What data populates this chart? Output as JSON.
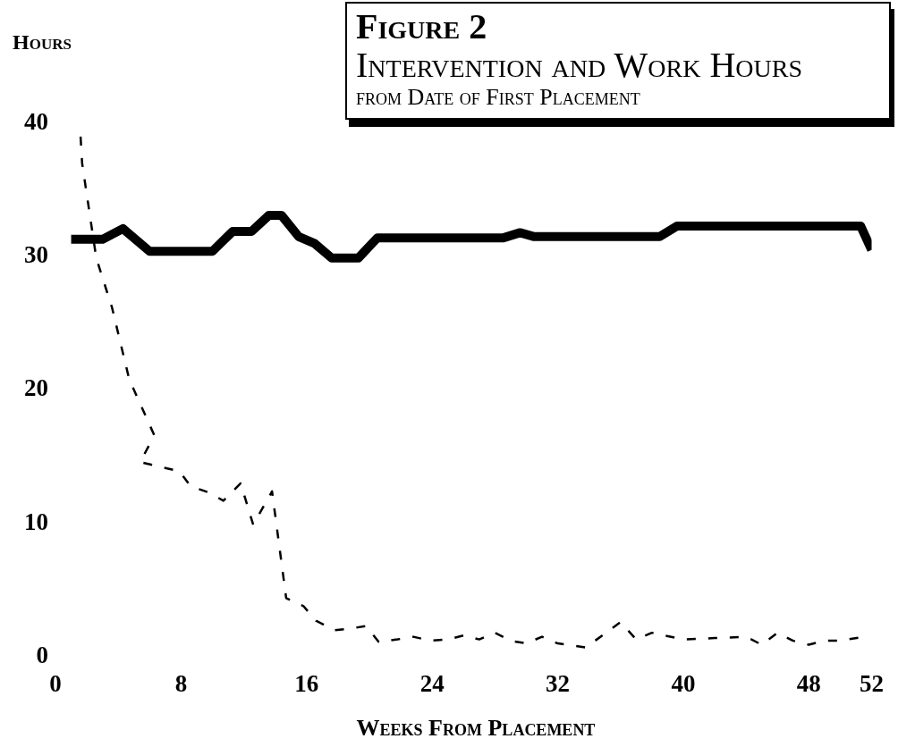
{
  "chart_data": {
    "type": "line",
    "title": "Figure 2",
    "subtitle": "Intervention and Work Hours",
    "annotations": [
      "from Date of First Placement"
    ],
    "xlabel": "Weeks From Placement",
    "ylabel": "Hours",
    "xlim": [
      0,
      52
    ],
    "xticks": [
      0,
      8,
      16,
      24,
      32,
      40,
      48,
      52
    ],
    "ylim": [
      0,
      40
    ],
    "yticks": [
      0,
      10,
      20,
      30,
      40
    ],
    "grid": false,
    "legend": false,
    "marker": "none",
    "series": [
      {
        "line_style": "solid",
        "color": "#000000",
        "x": [
          1,
          3,
          4.3,
          6,
          10,
          11.3,
          12.5,
          13.6,
          14.4,
          15.5,
          16.5,
          17.6,
          19.3,
          20.5,
          28.5,
          29.6,
          30.5,
          38.5,
          39.6,
          51.3,
          52
        ],
        "values": [
          31.3,
          31.3,
          32.1,
          30.4,
          30.4,
          31.9,
          31.9,
          33.1,
          33.1,
          31.5,
          31,
          29.9,
          29.9,
          31.4,
          31.4,
          31.8,
          31.5,
          31.5,
          32.3,
          32.3,
          30.5
        ]
      },
      {
        "line_style": "dashed",
        "color": "#000000",
        "x": [
          1.6,
          1.7,
          2.6,
          3.6,
          4.7,
          6.3,
          5.4,
          7.9,
          8.6,
          9.8,
          10.7,
          11.8,
          12.6,
          13.8,
          14.7,
          15.8,
          16.6,
          17.8,
          18.7,
          19.8,
          20.6,
          21.8,
          22.8,
          23.9,
          25,
          26,
          27,
          28,
          29,
          30,
          31,
          32,
          33.8,
          36,
          37,
          38,
          40,
          42,
          44,
          45,
          46,
          47,
          48,
          49,
          50,
          51.5
        ],
        "values": [
          39,
          37,
          29.9,
          26.2,
          20.8,
          16.6,
          14.6,
          13.9,
          12.8,
          12.3,
          11.7,
          13,
          9.9,
          12.4,
          4.4,
          3.8,
          2.7,
          2,
          2.1,
          2.3,
          1.1,
          1.3,
          1.5,
          1.2,
          1.3,
          1.6,
          1.3,
          1.8,
          1.2,
          1,
          1.5,
          1,
          0.7,
          2.6,
          1.3,
          1.8,
          1.3,
          1.4,
          1.5,
          0.9,
          1.8,
          1.2,
          0.9,
          1.2,
          1.2,
          1.5
        ]
      }
    ]
  }
}
